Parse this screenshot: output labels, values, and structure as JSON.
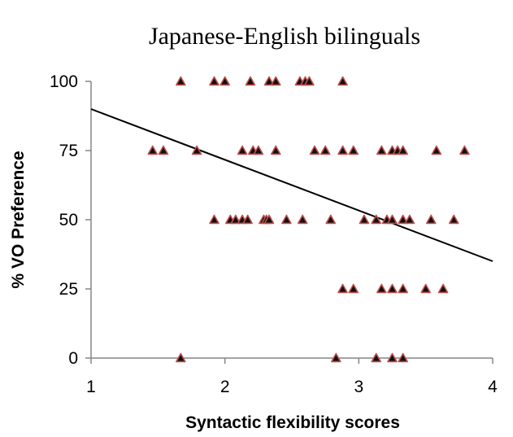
{
  "chart_data": {
    "type": "scatter",
    "title": "Japanese-English bilinguals",
    "xlabel": "Syntactic flexibility scores",
    "ylabel": "% VO Preference",
    "xlim": [
      1,
      4
    ],
    "ylim": [
      0,
      100
    ],
    "xticks": [
      "1",
      "2",
      "3",
      "4"
    ],
    "yticks": [
      "0",
      "25",
      "50",
      "75",
      "100"
    ],
    "grid": false,
    "legend": "none",
    "marker": {
      "shape": "triangle",
      "fill": "#111111",
      "edge": "#c0504d"
    },
    "trendline": {
      "x": [
        1,
        4
      ],
      "y": [
        90,
        35
      ],
      "color": "#000000"
    },
    "points": [
      [
        1.67,
        100
      ],
      [
        1.92,
        100
      ],
      [
        2.0,
        100
      ],
      [
        2.19,
        100
      ],
      [
        2.33,
        100
      ],
      [
        2.38,
        100
      ],
      [
        2.56,
        100
      ],
      [
        2.6,
        100
      ],
      [
        2.63,
        100
      ],
      [
        2.88,
        100
      ],
      [
        1.46,
        75
      ],
      [
        1.54,
        75
      ],
      [
        1.79,
        75
      ],
      [
        2.13,
        75
      ],
      [
        2.21,
        75
      ],
      [
        2.25,
        75
      ],
      [
        2.38,
        75
      ],
      [
        2.67,
        75
      ],
      [
        2.75,
        75
      ],
      [
        2.88,
        75
      ],
      [
        2.96,
        75
      ],
      [
        3.17,
        75
      ],
      [
        3.25,
        75
      ],
      [
        3.29,
        75
      ],
      [
        3.33,
        75
      ],
      [
        3.58,
        75
      ],
      [
        3.79,
        75
      ],
      [
        1.92,
        50
      ],
      [
        2.04,
        50
      ],
      [
        2.08,
        50
      ],
      [
        2.13,
        50
      ],
      [
        2.17,
        50
      ],
      [
        2.29,
        50
      ],
      [
        2.31,
        50
      ],
      [
        2.33,
        50
      ],
      [
        2.46,
        50
      ],
      [
        2.58,
        50
      ],
      [
        2.79,
        50
      ],
      [
        3.04,
        50
      ],
      [
        3.13,
        50
      ],
      [
        3.21,
        50
      ],
      [
        3.25,
        50
      ],
      [
        3.33,
        50
      ],
      [
        3.38,
        50
      ],
      [
        3.54,
        50
      ],
      [
        3.71,
        50
      ],
      [
        2.88,
        25
      ],
      [
        2.96,
        25
      ],
      [
        3.17,
        25
      ],
      [
        3.25,
        25
      ],
      [
        3.33,
        25
      ],
      [
        3.5,
        25
      ],
      [
        3.63,
        25
      ],
      [
        1.67,
        0
      ],
      [
        2.83,
        0
      ],
      [
        3.13,
        0
      ],
      [
        3.25,
        0
      ],
      [
        3.33,
        0
      ]
    ]
  }
}
